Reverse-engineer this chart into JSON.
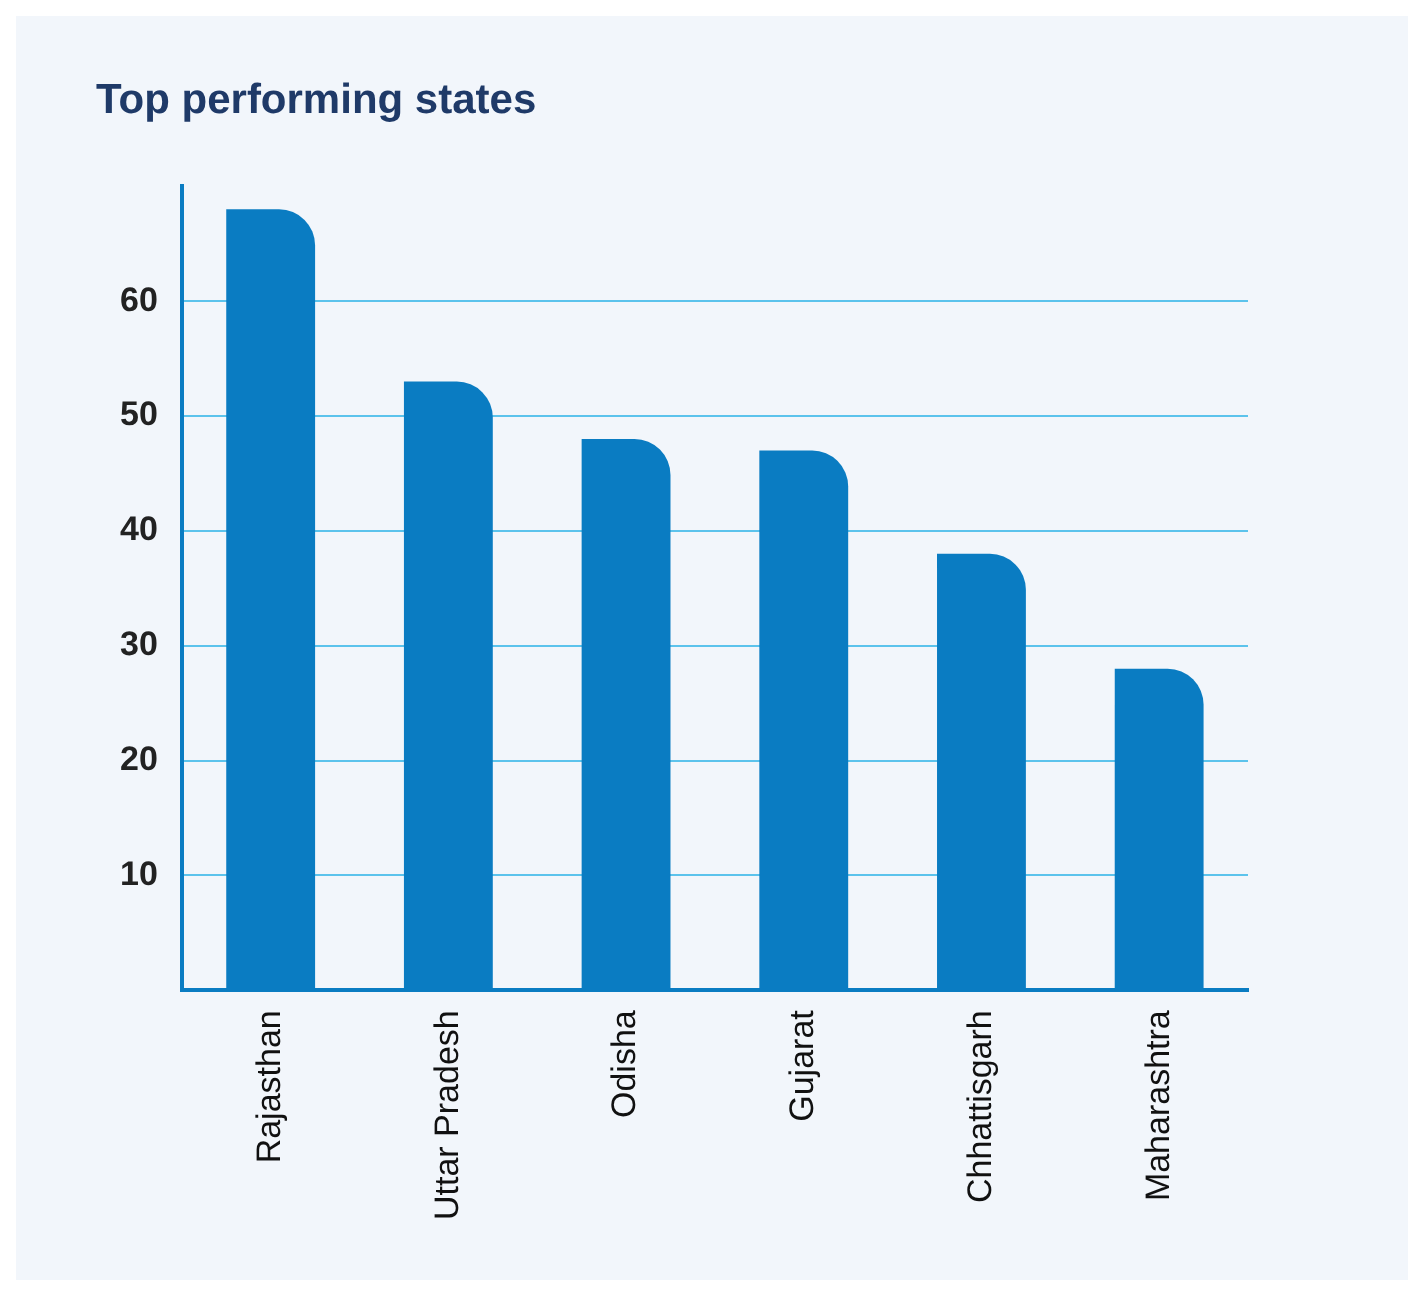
{
  "chart_data": {
    "type": "bar",
    "title": "Top performing states",
    "categories": [
      "Rajasthan",
      "Uttar Pradesh",
      "Odisha",
      "Gujarat",
      "Chhattisgarh",
      "Maharashtra"
    ],
    "values": [
      68,
      53,
      48,
      47,
      38,
      28
    ],
    "color": "#0a7cc2",
    "ylim": [
      0,
      70
    ],
    "yticks": [
      10,
      20,
      30,
      40,
      50,
      60
    ],
    "grid": "y",
    "legend": false
  }
}
